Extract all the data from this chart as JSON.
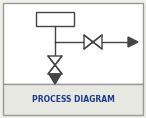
{
  "bg_color": "#f0f0eb",
  "border_color": "#999999",
  "line_color": "#444444",
  "title": "PROCESS DIAGRAM",
  "title_color": "#1a3a8a",
  "title_bg": "#e8e8e2",
  "lw": 1.0,
  "valve_size": 0.055,
  "figsize": [
    1.46,
    1.18
  ],
  "dpi": 100
}
